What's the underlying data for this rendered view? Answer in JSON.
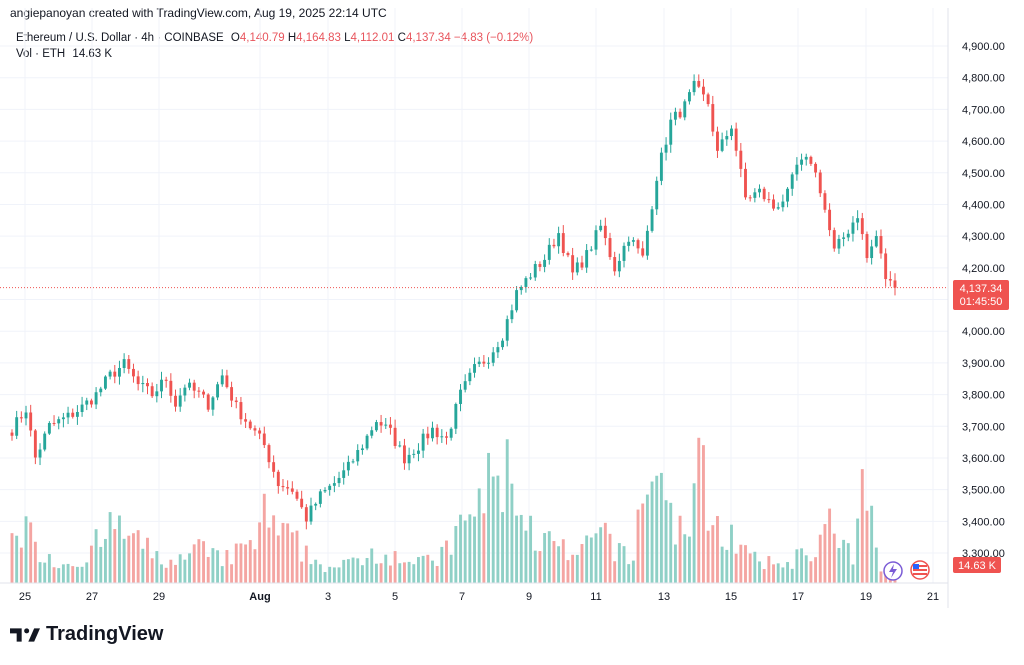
{
  "header": {
    "attribution": "angiepanoyan created with TradingView.com, Aug 19, 2025 22:14 UTC"
  },
  "legend": {
    "symbol": "Ethereum / U.S. Dollar · 4h · COINBASE",
    "o_label": "O",
    "o": "4,140.79",
    "h_label": "H",
    "h": "4,164.83",
    "l_label": "L",
    "l": "4,112.01",
    "c_label": "C",
    "c": "4,137.34",
    "change": "−4.83 (−0.12%)",
    "vol_label": "Vol · ETH",
    "vol": "14.63 K"
  },
  "badges": {
    "price": "4,137.34",
    "countdown": "01:45:50",
    "volume": "14.63 K"
  },
  "footer": {
    "brand": "TradingView"
  },
  "colors": {
    "up": "#26a69a",
    "down": "#ef5350",
    "up_vol": "#8fd0c6",
    "down_vol": "#f4a5a2",
    "price_line": "#ef5350"
  },
  "chart_data": {
    "type": "candlestick",
    "timeframe": "4h",
    "y_ticks": [
      "4,900.00",
      "4,800.00",
      "4,700.00",
      "4,600.00",
      "4,500.00",
      "4,400.00",
      "4,300.00",
      "4,200.00",
      "4,100.00",
      "4,000.00",
      "3,900.00",
      "3,800.00",
      "3,700.00",
      "3,600.00",
      "3,500.00",
      "3,400.00",
      "3,300.00"
    ],
    "y_tick_values": [
      4900,
      4800,
      4700,
      4600,
      4500,
      4400,
      4300,
      4200,
      4100,
      4000,
      3900,
      3800,
      3700,
      3600,
      3500,
      3400,
      3300
    ],
    "ylim": [
      3300,
      4950
    ],
    "x_ticks": [
      "25",
      "27",
      "29",
      "Aug",
      "3",
      "5",
      "7",
      "9",
      "11",
      "13",
      "15",
      "17",
      "19",
      "21"
    ],
    "last_price": 4137.34,
    "anchors": [
      [
        0,
        3690
      ],
      [
        3,
        3755
      ],
      [
        5,
        3600
      ],
      [
        8,
        3700
      ],
      [
        12,
        3730
      ],
      [
        15,
        3760
      ],
      [
        18,
        3800
      ],
      [
        21,
        3860
      ],
      [
        24,
        3895
      ],
      [
        27,
        3830
      ],
      [
        30,
        3800
      ],
      [
        33,
        3850
      ],
      [
        35,
        3770
      ],
      [
        37,
        3830
      ],
      [
        40,
        3800
      ],
      [
        42,
        3770
      ],
      [
        45,
        3860
      ],
      [
        48,
        3760
      ],
      [
        51,
        3700
      ],
      [
        54,
        3640
      ],
      [
        57,
        3520
      ],
      [
        60,
        3500
      ],
      [
        63,
        3410
      ],
      [
        66,
        3480
      ],
      [
        69,
        3520
      ],
      [
        72,
        3570
      ],
      [
        75,
        3640
      ],
      [
        78,
        3720
      ],
      [
        81,
        3680
      ],
      [
        84,
        3600
      ],
      [
        87,
        3640
      ],
      [
        90,
        3690
      ],
      [
        93,
        3660
      ],
      [
        96,
        3800
      ],
      [
        99,
        3880
      ],
      [
        102,
        3920
      ],
      [
        105,
        3990
      ],
      [
        108,
        4120
      ],
      [
        111,
        4180
      ],
      [
        114,
        4230
      ],
      [
        117,
        4310
      ],
      [
        120,
        4180
      ],
      [
        123,
        4240
      ],
      [
        126,
        4330
      ],
      [
        129,
        4200
      ],
      [
        132,
        4300
      ],
      [
        135,
        4230
      ],
      [
        138,
        4490
      ],
      [
        141,
        4660
      ],
      [
        144,
        4710
      ],
      [
        146,
        4770
      ],
      [
        149,
        4720
      ],
      [
        151,
        4560
      ],
      [
        154,
        4650
      ],
      [
        157,
        4420
      ],
      [
        160,
        4440
      ],
      [
        163,
        4390
      ],
      [
        166,
        4430
      ],
      [
        168,
        4520
      ],
      [
        171,
        4540
      ],
      [
        173,
        4450
      ],
      [
        176,
        4250
      ],
      [
        179,
        4320
      ],
      [
        181,
        4370
      ],
      [
        183,
        4230
      ],
      [
        185,
        4300
      ],
      [
        187,
        4170
      ],
      [
        189,
        4130
      ]
    ],
    "volume_anchors": [
      [
        0,
        70
      ],
      [
        5,
        40
      ],
      [
        10,
        20
      ],
      [
        15,
        25
      ],
      [
        18,
        40
      ],
      [
        22,
        60
      ],
      [
        25,
        50
      ],
      [
        30,
        30
      ],
      [
        35,
        20
      ],
      [
        40,
        35
      ],
      [
        44,
        25
      ],
      [
        48,
        30
      ],
      [
        52,
        45
      ],
      [
        54,
        70
      ],
      [
        57,
        50
      ],
      [
        60,
        45
      ],
      [
        63,
        30
      ],
      [
        66,
        20
      ],
      [
        70,
        15
      ],
      [
        74,
        25
      ],
      [
        78,
        35
      ],
      [
        82,
        30
      ],
      [
        86,
        25
      ],
      [
        90,
        20
      ],
      [
        94,
        40
      ],
      [
        98,
        70
      ],
      [
        102,
        100
      ],
      [
        105,
        110
      ],
      [
        107,
        120
      ],
      [
        110,
        60
      ],
      [
        113,
        45
      ],
      [
        116,
        40
      ],
      [
        120,
        25
      ],
      [
        124,
        40
      ],
      [
        127,
        55
      ],
      [
        130,
        30
      ],
      [
        133,
        25
      ],
      [
        135,
        100
      ],
      [
        137,
        120
      ],
      [
        139,
        105
      ],
      [
        141,
        75
      ],
      [
        144,
        45
      ],
      [
        147,
        120
      ],
      [
        149,
        90
      ],
      [
        151,
        60
      ],
      [
        154,
        50
      ],
      [
        157,
        30
      ],
      [
        160,
        20
      ],
      [
        164,
        20
      ],
      [
        167,
        25
      ],
      [
        170,
        30
      ],
      [
        173,
        45
      ],
      [
        175,
        60
      ],
      [
        177,
        40
      ],
      [
        180,
        25
      ],
      [
        182,
        90
      ],
      [
        184,
        70
      ],
      [
        186,
        20
      ],
      [
        189,
        15
      ]
    ]
  }
}
